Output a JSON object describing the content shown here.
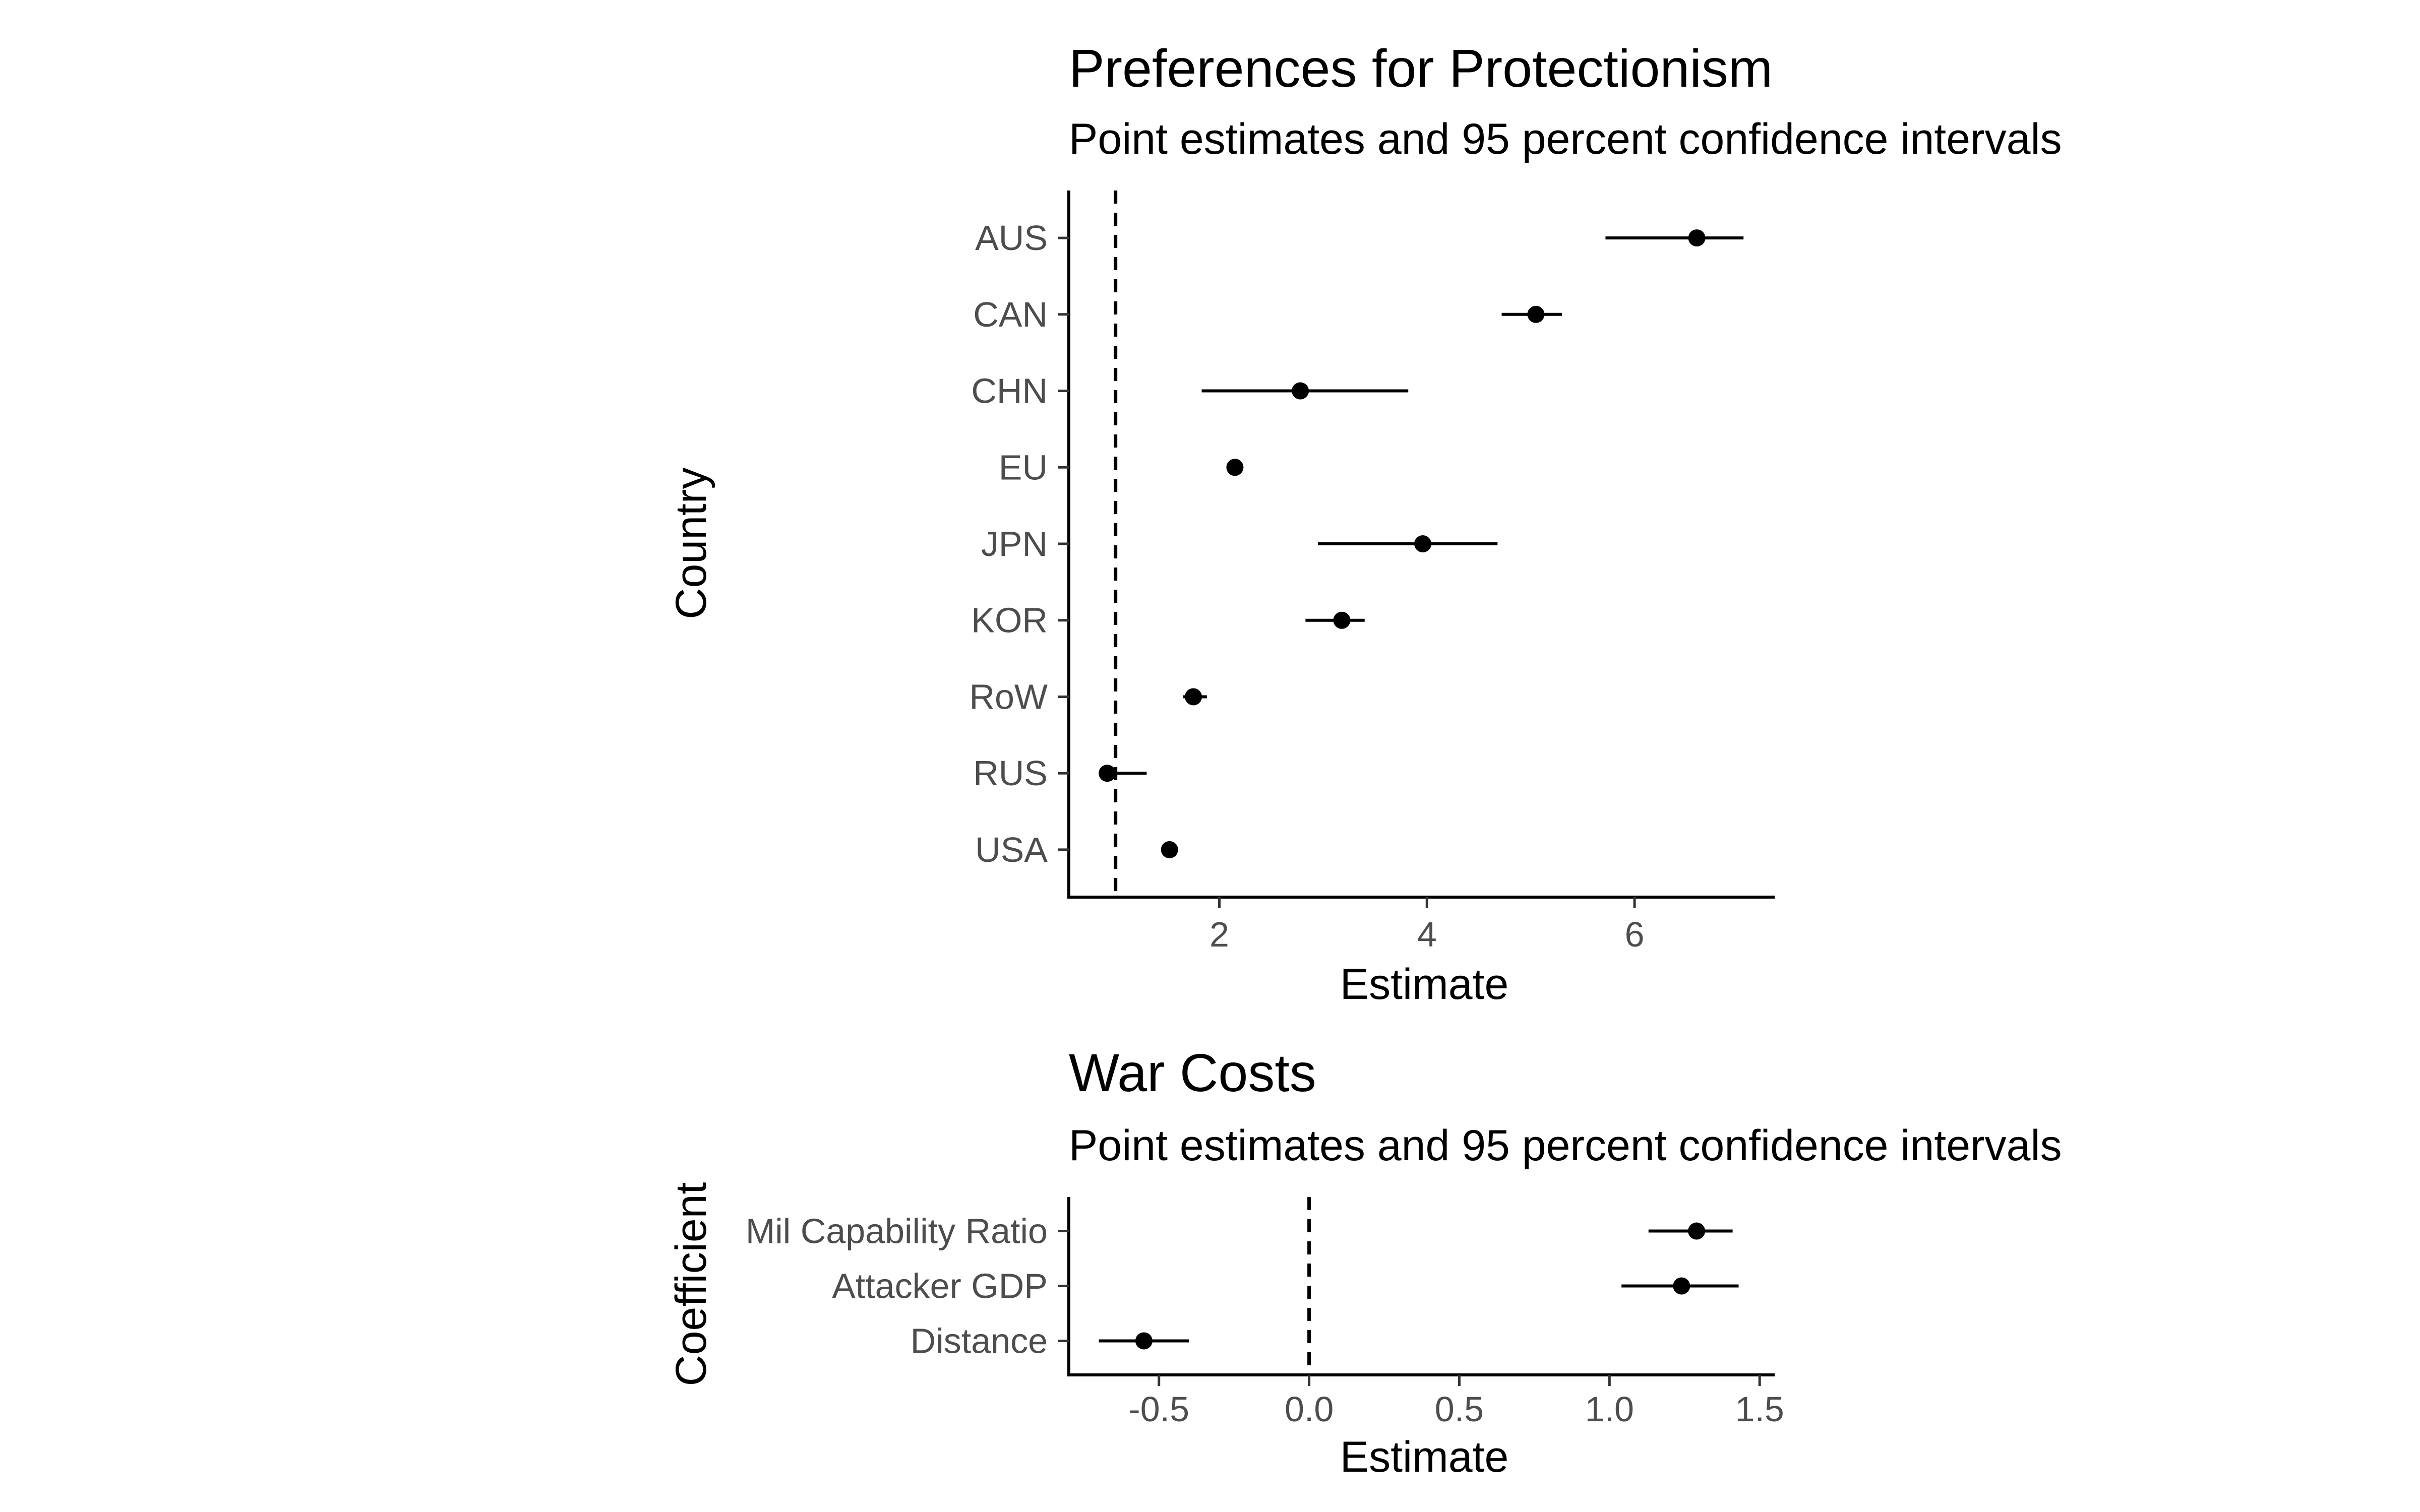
{
  "chart_data": [
    {
      "type": "dot-and-whisker",
      "title": "Preferences for Protectionism",
      "subtitle": "Point estimates and 95 percent confidence intervals",
      "xlabel": "Estimate",
      "ylabel": "Country",
      "xlim": [
        0.55,
        7.35
      ],
      "xticks": [
        2,
        4,
        6
      ],
      "xtick_labels": [
        "2",
        "4",
        "6"
      ],
      "reference_line": 1,
      "grid": false,
      "legend": "none",
      "categories": [
        "AUS",
        "CAN",
        "CHN",
        "EU",
        "JPN",
        "KOR",
        "RoW",
        "RUS",
        "USA"
      ],
      "estimates": [
        6.6,
        5.05,
        2.78,
        2.15,
        3.96,
        3.18,
        1.75,
        0.92,
        1.52
      ],
      "ci_low": [
        5.72,
        4.72,
        1.83,
        2.1,
        2.95,
        2.83,
        1.65,
        0.85,
        1.5
      ],
      "ci_high": [
        7.05,
        5.3,
        3.82,
        2.2,
        4.68,
        3.4,
        1.88,
        1.3,
        1.55
      ]
    },
    {
      "type": "dot-and-whisker",
      "title": "War Costs",
      "subtitle": "Point estimates and 95 percent confidence intervals",
      "xlabel": "Estimate",
      "ylabel": "Coefficient",
      "xlim": [
        -0.8,
        1.55
      ],
      "xticks": [
        -0.5,
        0.0,
        0.5,
        1.0,
        1.5
      ],
      "xtick_labels": [
        "-0.5",
        "0.0",
        "0.5",
        "1.0",
        "1.5"
      ],
      "reference_line": 0,
      "grid": false,
      "legend": "none",
      "categories": [
        "Mil Capability Ratio",
        "Attacker GDP",
        "Distance"
      ],
      "estimates": [
        1.29,
        1.24,
        -0.55
      ],
      "ci_low": [
        1.13,
        1.04,
        -0.7
      ],
      "ci_high": [
        1.41,
        1.43,
        -0.4
      ]
    }
  ]
}
